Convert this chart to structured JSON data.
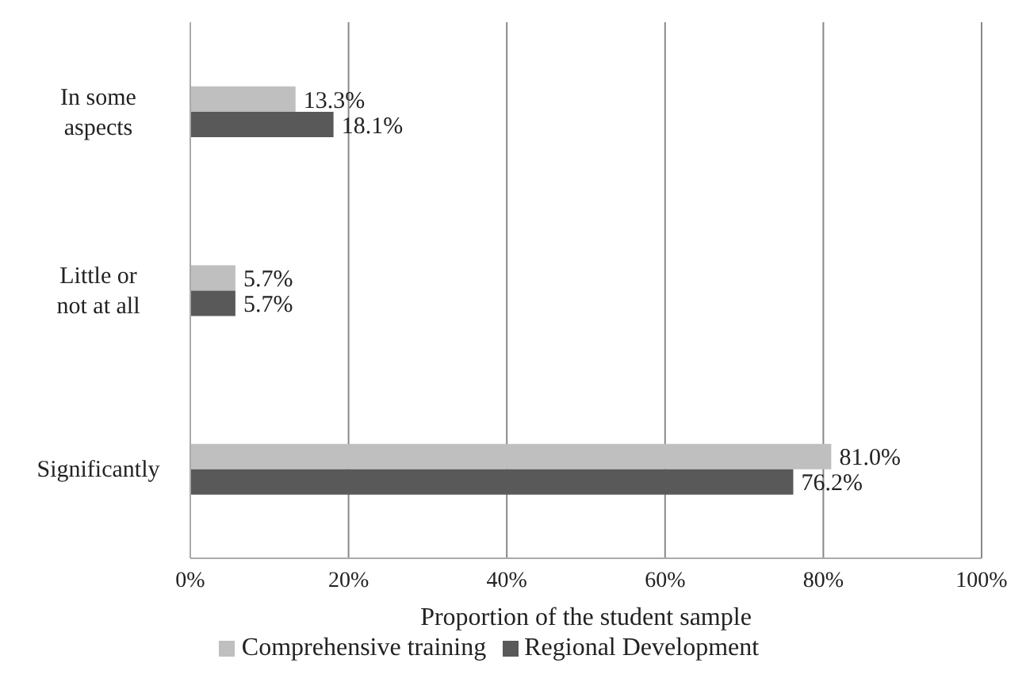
{
  "chart_data": {
    "type": "bar",
    "orientation": "horizontal",
    "categories": [
      "In some aspects",
      "Little or not at all",
      "Significantly"
    ],
    "series": [
      {
        "name": "Comprehensive training",
        "color": "#bfbfbf",
        "values": [
          13.3,
          5.7,
          81.0
        ],
        "value_labels": [
          "13.3%",
          "5.7%",
          "81.0%"
        ]
      },
      {
        "name": "Regional Development",
        "color": "#595959",
        "values": [
          18.1,
          5.7,
          76.2
        ],
        "value_labels": [
          "18.1%",
          "5.7%",
          "76.2%"
        ]
      }
    ],
    "xlabel": "Proportion of the student sample",
    "xlim": [
      0,
      100
    ],
    "xticks": [
      {
        "value": 0,
        "label": "0%"
      },
      {
        "value": 20,
        "label": "20%"
      },
      {
        "value": 40,
        "label": "40%"
      },
      {
        "value": 60,
        "label": "60%"
      },
      {
        "value": 80,
        "label": "80%"
      },
      {
        "value": 100,
        "label": "100%"
      }
    ],
    "grid": "x",
    "legend": "bottom"
  }
}
